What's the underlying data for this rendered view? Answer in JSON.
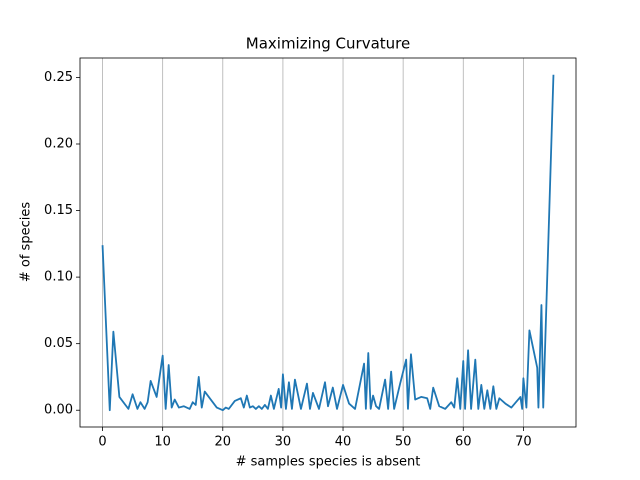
{
  "chart_data": {
    "type": "line",
    "title": "Maximizing Curvature",
    "x_label": "# samples species is absent",
    "y_label": "# of species",
    "x": [
      0,
      1.2,
      1.8,
      2.8,
      4.3,
      5,
      5.8,
      6.3,
      7,
      7.5,
      8,
      9,
      10,
      10.5,
      11,
      11.5,
      12,
      12.7,
      13.5,
      14.5,
      15,
      15.5,
      16,
      16.5,
      17,
      18,
      19,
      20,
      20.5,
      21,
      22,
      23,
      23.5,
      24,
      24.5,
      25,
      25.5,
      26,
      26.5,
      27,
      27.5,
      28,
      28.5,
      29.3,
      29.7,
      30,
      30.5,
      31,
      31.5,
      32,
      33,
      34,
      34.5,
      35,
      36,
      37,
      37.5,
      38.3,
      39,
      40,
      41,
      42,
      43.5,
      43.8,
      44.2,
      44.6,
      45,
      45.5,
      46,
      47,
      47.5,
      48,
      48.5,
      49.5,
      50.5,
      50.8,
      51.3,
      52,
      53,
      54,
      54.5,
      55,
      56,
      57,
      58,
      58.5,
      59,
      59.5,
      60,
      60.3,
      60.8,
      61.3,
      62,
      62.5,
      63,
      63.5,
      64,
      64.5,
      65,
      65.5,
      66,
      67,
      68,
      69.5,
      69.8,
      70,
      70.5,
      71,
      72.3,
      72.5,
      73,
      73.3,
      75
    ],
    "values": [
      0.124,
      0.0,
      0.059,
      0.01,
      0.001,
      0.012,
      0.001,
      0.006,
      0.001,
      0.006,
      0.022,
      0.01,
      0.041,
      0.001,
      0.034,
      0.002,
      0.008,
      0.002,
      0.003,
      0.001,
      0.006,
      0.004,
      0.025,
      0.002,
      0.014,
      0.008,
      0.002,
      0.0,
      0.002,
      0.001,
      0.007,
      0.009,
      0.002,
      0.011,
      0.002,
      0.003,
      0.001,
      0.003,
      0.001,
      0.004,
      0.001,
      0.011,
      0.001,
      0.016,
      0.002,
      0.027,
      0.001,
      0.021,
      0.001,
      0.023,
      0.001,
      0.02,
      0.001,
      0.013,
      0.001,
      0.021,
      0.003,
      0.017,
      0.001,
      0.019,
      0.005,
      0.001,
      0.035,
      0.001,
      0.043,
      0.001,
      0.011,
      0.003,
      0.001,
      0.023,
      0.001,
      0.029,
      0.001,
      0.02,
      0.038,
      0.001,
      0.042,
      0.008,
      0.01,
      0.009,
      0.001,
      0.017,
      0.003,
      0.001,
      0.006,
      0.002,
      0.024,
      0.001,
      0.037,
      0.001,
      0.045,
      0.001,
      0.038,
      0.001,
      0.019,
      0.001,
      0.015,
      0.001,
      0.018,
      0.001,
      0.009,
      0.005,
      0.002,
      0.01,
      0.001,
      0.024,
      0.002,
      0.06,
      0.032,
      0.002,
      0.079,
      0.002,
      0.252
    ],
    "color": "#1f77b4",
    "xlim": [
      -3.75,
      78.75
    ],
    "xticks": [
      0,
      10,
      20,
      30,
      40,
      50,
      60,
      70
    ],
    "ylim": [
      -0.0126,
      0.2646
    ],
    "yticks": [
      {
        "value": 0,
        "label": "0.00"
      },
      {
        "value": 0.05,
        "label": "0.05"
      },
      {
        "value": 0.1,
        "label": "0.10"
      },
      {
        "value": 0.15,
        "label": "0.15"
      },
      {
        "value": 0.2,
        "label": "0.20"
      },
      {
        "value": 0.25,
        "label": "0.25"
      }
    ],
    "grid": "x"
  }
}
